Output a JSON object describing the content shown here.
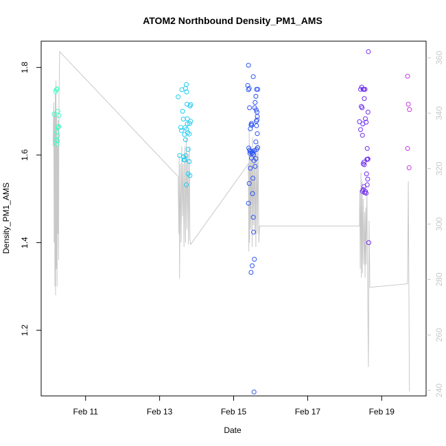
{
  "chart_data": {
    "type": "scatter",
    "title": "ATOM2 Northbound Density_PM1_AMS",
    "xlabel": "Date",
    "ylabel": "Density_PM1_AMS",
    "x_units": "days in February",
    "xlim": [
      9.8,
      20.2
    ],
    "ylim": [
      1.05,
      1.86
    ],
    "x_ticks": [
      {
        "value": 11,
        "label": "Feb 11"
      },
      {
        "value": 13,
        "label": "Feb 13"
      },
      {
        "value": 15,
        "label": "Feb 15"
      },
      {
        "value": 17,
        "label": "Feb 17"
      },
      {
        "value": 19,
        "label": "Feb 19"
      }
    ],
    "y_ticks": [
      1.2,
      1.4,
      1.6,
      1.8
    ],
    "y2_ticks": [
      240,
      260,
      280,
      300,
      320,
      340,
      360
    ],
    "y2lim": [
      238,
      366
    ],
    "grid": false,
    "axis_color": "#000000",
    "right_axis_color": "#c8c8c8",
    "line_color": "#c8c8c8",
    "points": [
      {
        "x": 10.15,
        "y": 1.693,
        "c": "#3dffc8"
      },
      {
        "x": 10.19,
        "y": 1.745,
        "c": "#3dffc6"
      },
      {
        "x": 10.21,
        "y": 1.749,
        "c": "#3dffc4"
      },
      {
        "x": 10.22,
        "y": 1.625,
        "c": "#3dffc4"
      },
      {
        "x": 10.2,
        "y": 1.635,
        "c": "#3dffc5"
      },
      {
        "x": 10.24,
        "y": 1.644,
        "c": "#3dffc3"
      },
      {
        "x": 10.22,
        "y": 1.652,
        "c": "#3dffc4"
      },
      {
        "x": 10.26,
        "y": 1.664,
        "c": "#3dffc2"
      },
      {
        "x": 10.27,
        "y": 1.665,
        "c": "#3dffc2"
      },
      {
        "x": 10.25,
        "y": 1.7,
        "c": "#3dffc3"
      },
      {
        "x": 10.28,
        "y": 1.69,
        "c": "#3dffc1"
      },
      {
        "x": 10.23,
        "y": 1.751,
        "c": "#3dffc3"
      },
      {
        "x": 10.24,
        "y": 1.632,
        "c": "#3dffc3"
      },
      {
        "x": 10.25,
        "y": 1.663,
        "c": "#3dffc3"
      },
      {
        "x": 13.5,
        "y": 1.733,
        "c": "#1fd0ef"
      },
      {
        "x": 13.54,
        "y": 1.599,
        "c": "#1fd0ef"
      },
      {
        "x": 13.57,
        "y": 1.663,
        "c": "#1fcfef"
      },
      {
        "x": 13.6,
        "y": 1.749,
        "c": "#1fceef"
      },
      {
        "x": 13.62,
        "y": 1.7,
        "c": "#1fceef"
      },
      {
        "x": 13.59,
        "y": 1.656,
        "c": "#1fceef"
      },
      {
        "x": 13.64,
        "y": 1.682,
        "c": "#1fcdef"
      },
      {
        "x": 13.65,
        "y": 1.596,
        "c": "#1fcdef"
      },
      {
        "x": 13.66,
        "y": 1.589,
        "c": "#1fcdef"
      },
      {
        "x": 13.67,
        "y": 1.647,
        "c": "#1fcdef"
      },
      {
        "x": 13.69,
        "y": 1.663,
        "c": "#1fccef"
      },
      {
        "x": 13.7,
        "y": 1.635,
        "c": "#1fccef"
      },
      {
        "x": 13.71,
        "y": 1.599,
        "c": "#1fccef"
      },
      {
        "x": 13.68,
        "y": 1.589,
        "c": "#1fccef"
      },
      {
        "x": 13.72,
        "y": 1.761,
        "c": "#1fcbef"
      },
      {
        "x": 13.7,
        "y": 1.752,
        "c": "#1fccef"
      },
      {
        "x": 13.73,
        "y": 1.744,
        "c": "#1fcbef"
      },
      {
        "x": 13.74,
        "y": 1.716,
        "c": "#1fcbef"
      },
      {
        "x": 13.75,
        "y": 1.683,
        "c": "#1fcaef"
      },
      {
        "x": 13.75,
        "y": 1.671,
        "c": "#1fcaef"
      },
      {
        "x": 13.73,
        "y": 1.659,
        "c": "#1fcbef"
      },
      {
        "x": 13.76,
        "y": 1.651,
        "c": "#1fcaef"
      },
      {
        "x": 13.77,
        "y": 1.613,
        "c": "#1fcaef"
      },
      {
        "x": 13.72,
        "y": 1.532,
        "c": "#1fcbef"
      },
      {
        "x": 13.77,
        "y": 1.557,
        "c": "#1fcaef"
      },
      {
        "x": 13.8,
        "y": 1.585,
        "c": "#1fc9ef"
      },
      {
        "x": 13.82,
        "y": 1.553,
        "c": "#1fc9ef"
      },
      {
        "x": 13.8,
        "y": 1.648,
        "c": "#1fc9ef"
      },
      {
        "x": 13.82,
        "y": 1.712,
        "c": "#1fc9ef"
      },
      {
        "x": 13.84,
        "y": 1.715,
        "c": "#1fc8ef"
      },
      {
        "x": 13.81,
        "y": 1.672,
        "c": "#1fc9ef"
      },
      {
        "x": 13.84,
        "y": 1.677,
        "c": "#1fc8ef"
      },
      {
        "x": 15.4,
        "y": 1.805,
        "c": "#2b55f4"
      },
      {
        "x": 15.38,
        "y": 1.759,
        "c": "#2b56f4"
      },
      {
        "x": 15.4,
        "y": 1.749,
        "c": "#2b55f4"
      },
      {
        "x": 15.42,
        "y": 1.752,
        "c": "#2b55f4"
      },
      {
        "x": 15.43,
        "y": 1.708,
        "c": "#2b54f4"
      },
      {
        "x": 15.41,
        "y": 1.616,
        "c": "#2b55f4"
      },
      {
        "x": 15.43,
        "y": 1.611,
        "c": "#2b54f4"
      },
      {
        "x": 15.44,
        "y": 1.604,
        "c": "#2b54f4"
      },
      {
        "x": 15.45,
        "y": 1.608,
        "c": "#2b54f4"
      },
      {
        "x": 15.45,
        "y": 1.66,
        "c": "#2b54f4"
      },
      {
        "x": 15.47,
        "y": 1.669,
        "c": "#2b53f4"
      },
      {
        "x": 15.48,
        "y": 1.672,
        "c": "#2b53f4"
      },
      {
        "x": 15.49,
        "y": 1.668,
        "c": "#2b53f4"
      },
      {
        "x": 15.5,
        "y": 1.604,
        "c": "#2b52f4"
      },
      {
        "x": 15.48,
        "y": 1.593,
        "c": "#2b53f4"
      },
      {
        "x": 15.5,
        "y": 1.608,
        "c": "#2b52f4"
      },
      {
        "x": 15.52,
        "y": 1.605,
        "c": "#2b52f4"
      },
      {
        "x": 15.54,
        "y": 1.601,
        "c": "#2b51f4"
      },
      {
        "x": 15.55,
        "y": 1.587,
        "c": "#2b51f4"
      },
      {
        "x": 15.56,
        "y": 1.61,
        "c": "#2b51f4"
      },
      {
        "x": 15.45,
        "y": 1.57,
        "c": "#2b54f4"
      },
      {
        "x": 15.42,
        "y": 1.535,
        "c": "#2b54f4"
      },
      {
        "x": 15.4,
        "y": 1.49,
        "c": "#2b55f4"
      },
      {
        "x": 15.52,
        "y": 1.547,
        "c": "#2b52f4"
      },
      {
        "x": 15.51,
        "y": 1.512,
        "c": "#2b52f4"
      },
      {
        "x": 15.53,
        "y": 1.458,
        "c": "#2b52f4"
      },
      {
        "x": 15.54,
        "y": 1.424,
        "c": "#2b51f4"
      },
      {
        "x": 15.56,
        "y": 1.362,
        "c": "#2b51f4"
      },
      {
        "x": 15.5,
        "y": 1.347,
        "c": "#2b52f4"
      },
      {
        "x": 15.47,
        "y": 1.332,
        "c": "#2b53f4"
      },
      {
        "x": 15.55,
        "y": 1.059,
        "c": "#2b51f4"
      },
      {
        "x": 15.53,
        "y": 1.779,
        "c": "#2b52f4"
      },
      {
        "x": 15.57,
        "y": 1.708,
        "c": "#2b50f4"
      },
      {
        "x": 15.58,
        "y": 1.72,
        "c": "#2b50f4"
      },
      {
        "x": 15.6,
        "y": 1.734,
        "c": "#2b4ff4"
      },
      {
        "x": 15.61,
        "y": 1.703,
        "c": "#2b4ff4"
      },
      {
        "x": 15.62,
        "y": 1.75,
        "c": "#2b4ff4"
      },
      {
        "x": 15.65,
        "y": 1.75,
        "c": "#2b4ef4"
      },
      {
        "x": 15.63,
        "y": 1.698,
        "c": "#2b4ef4"
      },
      {
        "x": 15.64,
        "y": 1.688,
        "c": "#2b4ef4"
      },
      {
        "x": 15.61,
        "y": 1.677,
        "c": "#2b4ff4"
      },
      {
        "x": 15.63,
        "y": 1.68,
        "c": "#2b4ef4"
      },
      {
        "x": 15.62,
        "y": 1.667,
        "c": "#2b4ff4"
      },
      {
        "x": 15.64,
        "y": 1.649,
        "c": "#2b4ef4"
      },
      {
        "x": 15.6,
        "y": 1.63,
        "c": "#2b4ff4"
      },
      {
        "x": 15.62,
        "y": 1.613,
        "c": "#2b4ff4"
      },
      {
        "x": 15.65,
        "y": 1.617,
        "c": "#2b4ef4"
      },
      {
        "x": 15.6,
        "y": 1.592,
        "c": "#2b4ff4"
      },
      {
        "x": 15.58,
        "y": 1.574,
        "c": "#2b50f4"
      },
      {
        "x": 18.4,
        "y": 1.676,
        "c": "#6a2cf0"
      },
      {
        "x": 18.43,
        "y": 1.75,
        "c": "#6b2cf0"
      },
      {
        "x": 18.46,
        "y": 1.755,
        "c": "#6c2cf0"
      },
      {
        "x": 18.45,
        "y": 1.711,
        "c": "#6c2cf0"
      },
      {
        "x": 18.47,
        "y": 1.708,
        "c": "#6c2cf0"
      },
      {
        "x": 18.43,
        "y": 1.658,
        "c": "#6b2cf0"
      },
      {
        "x": 18.49,
        "y": 1.671,
        "c": "#6d2cf0"
      },
      {
        "x": 18.48,
        "y": 1.645,
        "c": "#6d2cf0"
      },
      {
        "x": 18.5,
        "y": 1.75,
        "c": "#6d2cf0"
      },
      {
        "x": 18.52,
        "y": 1.75,
        "c": "#6e2cf0"
      },
      {
        "x": 18.53,
        "y": 1.729,
        "c": "#6e2cf0"
      },
      {
        "x": 18.55,
        "y": 1.75,
        "c": "#6f2cf0"
      },
      {
        "x": 18.56,
        "y": 1.683,
        "c": "#6f2cf0"
      },
      {
        "x": 18.58,
        "y": 1.675,
        "c": "#702cf0"
      },
      {
        "x": 18.5,
        "y": 1.58,
        "c": "#6d2cf0"
      },
      {
        "x": 18.52,
        "y": 1.584,
        "c": "#6e2cf0"
      },
      {
        "x": 18.53,
        "y": 1.578,
        "c": "#6e2cf0"
      },
      {
        "x": 18.48,
        "y": 1.517,
        "c": "#6d2cf0"
      },
      {
        "x": 18.5,
        "y": 1.521,
        "c": "#6d2cf0"
      },
      {
        "x": 18.52,
        "y": 1.528,
        "c": "#6e2cf0"
      },
      {
        "x": 18.54,
        "y": 1.514,
        "c": "#6f2cf0"
      },
      {
        "x": 18.56,
        "y": 1.517,
        "c": "#6f2cf0"
      },
      {
        "x": 18.58,
        "y": 1.513,
        "c": "#702cf0"
      },
      {
        "x": 18.59,
        "y": 1.557,
        "c": "#702cf0"
      },
      {
        "x": 18.6,
        "y": 1.59,
        "c": "#702cf0"
      },
      {
        "x": 18.62,
        "y": 1.59,
        "c": "#712cf0"
      },
      {
        "x": 18.63,
        "y": 1.591,
        "c": "#712cf0"
      },
      {
        "x": 18.61,
        "y": 1.615,
        "c": "#712cf0"
      },
      {
        "x": 18.62,
        "y": 1.545,
        "c": "#712cf0"
      },
      {
        "x": 18.61,
        "y": 1.532,
        "c": "#712cf0"
      },
      {
        "x": 18.63,
        "y": 1.698,
        "c": "#712cf0"
      },
      {
        "x": 18.64,
        "y": 1.836,
        "c": "#722cf0"
      },
      {
        "x": 18.65,
        "y": 1.4,
        "c": "#722cf0"
      },
      {
        "x": 19.7,
        "y": 1.78,
        "c": "#c43ae3"
      },
      {
        "x": 19.72,
        "y": 1.716,
        "c": "#c53ae3"
      },
      {
        "x": 19.75,
        "y": 1.704,
        "c": "#c63ae3"
      },
      {
        "x": 19.7,
        "y": 1.615,
        "c": "#c43ae3"
      },
      {
        "x": 19.74,
        "y": 1.571,
        "c": "#c63ae3"
      }
    ],
    "line_series": [
      [
        10.12,
        1.62
      ],
      [
        10.14,
        1.72
      ],
      [
        10.15,
        1.4
      ],
      [
        10.16,
        1.7
      ],
      [
        10.17,
        1.3
      ],
      [
        10.18,
        1.74
      ],
      [
        10.19,
        1.28
      ],
      [
        10.2,
        1.77
      ],
      [
        10.21,
        1.34
      ],
      [
        10.22,
        1.69
      ],
      [
        10.23,
        1.3
      ],
      [
        10.24,
        1.62
      ],
      [
        10.25,
        1.42
      ],
      [
        10.26,
        1.68
      ],
      [
        10.27,
        1.36
      ],
      [
        10.28,
        1.72
      ],
      [
        10.3,
        1.836
      ],
      [
        13.5,
        1.551
      ],
      [
        13.52,
        1.42
      ],
      [
        13.53,
        1.6
      ],
      [
        13.54,
        1.318
      ],
      [
        13.56,
        1.58
      ],
      [
        13.58,
        1.4
      ],
      [
        13.6,
        1.62
      ],
      [
        13.62,
        1.46
      ],
      [
        13.64,
        1.58
      ],
      [
        13.66,
        1.39
      ],
      [
        13.68,
        1.62
      ],
      [
        13.7,
        1.4
      ],
      [
        13.72,
        1.64
      ],
      [
        13.74,
        1.43
      ],
      [
        13.76,
        1.6
      ],
      [
        13.78,
        1.396
      ],
      [
        13.8,
        1.62
      ],
      [
        13.82,
        1.41
      ],
      [
        13.84,
        1.396
      ],
      [
        15.4,
        1.58
      ],
      [
        15.41,
        1.38
      ],
      [
        15.42,
        1.66
      ],
      [
        15.43,
        1.4
      ],
      [
        15.45,
        1.62
      ],
      [
        15.46,
        1.43
      ],
      [
        15.48,
        1.6
      ],
      [
        15.5,
        1.39
      ],
      [
        15.51,
        1.64
      ],
      [
        15.53,
        1.44
      ],
      [
        15.55,
        1.6
      ],
      [
        15.57,
        1.42
      ],
      [
        15.58,
        1.62
      ],
      [
        15.6,
        1.39
      ],
      [
        15.62,
        1.62
      ],
      [
        15.64,
        1.42
      ],
      [
        15.66,
        1.63
      ],
      [
        15.68,
        1.4
      ],
      [
        15.7,
        1.438
      ],
      [
        18.4,
        1.438
      ],
      [
        18.41,
        1.52
      ],
      [
        18.42,
        1.34
      ],
      [
        18.44,
        1.56
      ],
      [
        18.45,
        1.32
      ],
      [
        18.47,
        1.54
      ],
      [
        18.48,
        1.33
      ],
      [
        18.5,
        1.5
      ],
      [
        18.52,
        1.35
      ],
      [
        18.54,
        1.47
      ],
      [
        18.55,
        1.32
      ],
      [
        18.57,
        1.48
      ],
      [
        18.58,
        1.35
      ],
      [
        18.6,
        1.52
      ],
      [
        18.62,
        1.3
      ],
      [
        18.64,
        1.116
      ],
      [
        18.66,
        1.45
      ],
      [
        18.68,
        1.298
      ],
      [
        19.7,
        1.306
      ],
      [
        19.72,
        1.54
      ],
      [
        19.75,
        1.06
      ]
    ]
  }
}
